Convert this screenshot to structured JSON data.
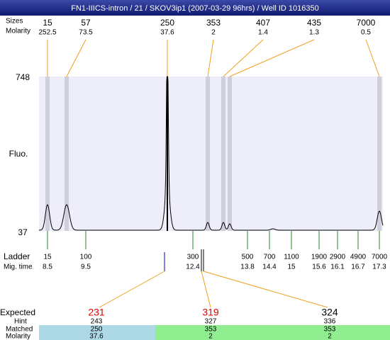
{
  "title": "FN1-IIICS-intron / 21 / SKOV3ip1 (2007-03-29 96hrs) / Well ID 1016350",
  "peaks": {
    "label_size": "Sizes",
    "label_molarity": "Molarity",
    "items": [
      {
        "size": "15",
        "molarity": "252.5"
      },
      {
        "size": "57",
        "molarity": "73.5"
      },
      {
        "size": "250",
        "molarity": "37.6"
      },
      {
        "size": "353",
        "molarity": "2"
      },
      {
        "size": "407",
        "molarity": "1.4"
      },
      {
        "size": "435",
        "molarity": "1.3"
      },
      {
        "size": "7000",
        "molarity": "0.5"
      }
    ]
  },
  "plot": {
    "y_label": "Fluo.",
    "y_top": "748",
    "y_bottom": "37"
  },
  "ladder": {
    "label": "Ladder",
    "label_time": "Mig. time",
    "items": [
      {
        "size": "15",
        "time": "8.5"
      },
      {
        "size": "100",
        "time": "9.5"
      },
      {
        "size": "300",
        "time": "12.4"
      },
      {
        "size": "500",
        "time": "13.8"
      },
      {
        "size": "700",
        "time": "14.4"
      },
      {
        "size": "1100",
        "time": "15"
      },
      {
        "size": "1900",
        "time": "15.6"
      },
      {
        "size": "2900",
        "time": "16.1"
      },
      {
        "size": "4900",
        "time": "16.7"
      },
      {
        "size": "7000",
        "time": "17.3"
      }
    ]
  },
  "expected": {
    "label_expected": "Expected",
    "label_hint": "Hint",
    "label_matched": "Matched",
    "label_molarity": "Molarity",
    "items": [
      {
        "expected": "231",
        "hint": "243",
        "matched": "250",
        "molarity": "37.6"
      },
      {
        "expected": "319",
        "hint": "327",
        "matched": "353",
        "molarity": "2"
      },
      {
        "expected": "324",
        "hint": "336",
        "matched": "353",
        "molarity": "2"
      }
    ]
  }
}
